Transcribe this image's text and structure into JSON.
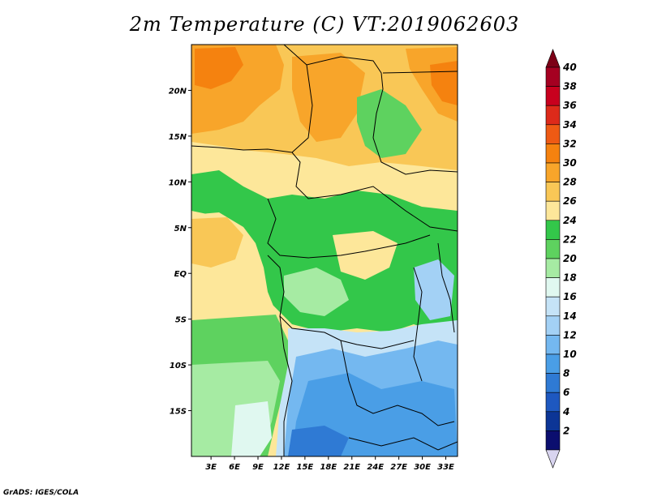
{
  "title": "2m Temperature (C) VT:2019062603",
  "credit": "GrADS: IGES/COLA",
  "map": {
    "lat_labels": [
      "20N",
      "15N",
      "10N",
      "5N",
      "EQ",
      "5S",
      "10S",
      "15S"
    ],
    "lat_values": [
      20,
      15,
      10,
      5,
      0,
      -5,
      -10,
      -15
    ],
    "lon_labels": [
      "3E",
      "6E",
      "9E",
      "12E",
      "15E",
      "18E",
      "21E",
      "24E",
      "27E",
      "30E",
      "33E"
    ],
    "lon_values": [
      3,
      6,
      9,
      12,
      15,
      18,
      21,
      24,
      27,
      30,
      33
    ],
    "lon_range": [
      0.5,
      34.5
    ],
    "lat_range": [
      -20,
      25
    ]
  },
  "colorbar": {
    "labels": [
      "40",
      "38",
      "36",
      "34",
      "32",
      "30",
      "28",
      "26",
      "24",
      "22",
      "20",
      "18",
      "16",
      "14",
      "12",
      "10",
      "8",
      "6",
      "4",
      "2"
    ],
    "colors": [
      "#a50021",
      "#c8001e",
      "#dd2a1a",
      "#ee5a14",
      "#f5820f",
      "#f8a52a",
      "#f9c756",
      "#fde79a",
      "#33c74a",
      "#5ed25f",
      "#a6eba3",
      "#e0f8f0",
      "#c5e3f7",
      "#a3d1f5",
      "#74b8f0",
      "#4a9ee6",
      "#2f7ad4",
      "#1e58c0",
      "#0c3596",
      "#0b0e6f"
    ],
    "top_arrow_color": "#7c0016",
    "bottom_arrow_color": "#d8d4ef"
  }
}
